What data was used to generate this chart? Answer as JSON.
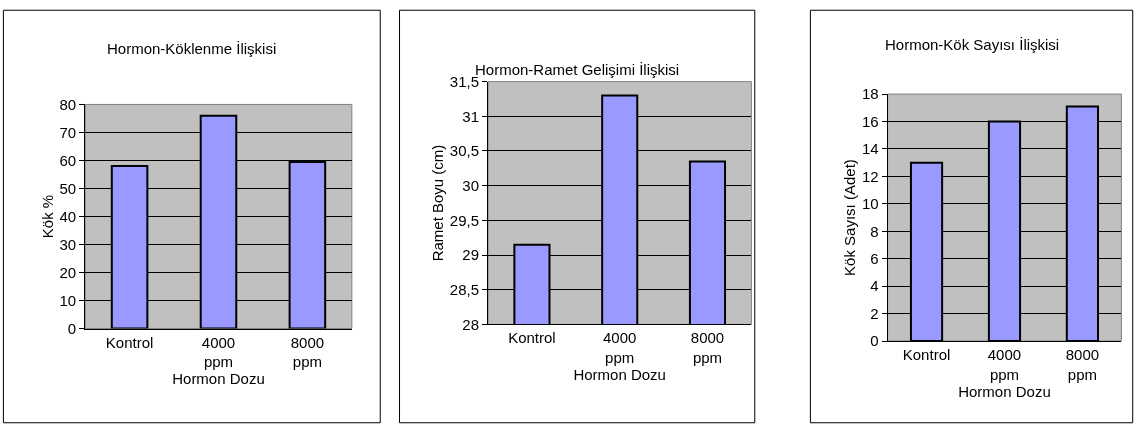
{
  "chart_data": [
    {
      "type": "bar",
      "title": "Hormon-Köklenme İlişkisi",
      "xlabel": "Hormon Dozu",
      "ylabel": "Kök %",
      "categories": [
        "Kontrol",
        "4000 ppm",
        "8000 ppm"
      ],
      "values": [
        58,
        76,
        59.5
      ],
      "color": "#9999ff",
      "ylim": [
        0,
        80
      ],
      "yticks": [
        0,
        10,
        20,
        30,
        40,
        50,
        60,
        70,
        80
      ],
      "grid": "y"
    },
    {
      "type": "bar",
      "title": "Hormon-Ramet Gelişimi İlişkisi",
      "xlabel": "Hormon Dozu",
      "ylabel": "Ramet Boyu (cm)",
      "categories": [
        "Kontrol",
        "4000 ppm",
        "8000 ppm"
      ],
      "values": [
        29.15,
        31.3,
        30.35
      ],
      "color": "#9999ff",
      "ylim": [
        28,
        31.5
      ],
      "yticks": [
        28,
        {
          "value": 28.5,
          "label": "28,5"
        },
        29,
        {
          "value": 29.5,
          "label": "29,5"
        },
        30,
        {
          "value": 30.5,
          "label": "30,5"
        },
        31,
        {
          "value": 31.5,
          "label": "31,5"
        }
      ],
      "grid": "y"
    },
    {
      "type": "bar",
      "title": "Hormon-Kök Sayısı İlişkisi",
      "xlabel": "Hormon Dozu",
      "ylabel": "Kök Sayısı (Adet)",
      "categories": [
        "Kontrol",
        "4000 ppm",
        "8000 ppm"
      ],
      "values": [
        13,
        16,
        17.1
      ],
      "color": "#9999ff",
      "ylim": [
        0,
        18
      ],
      "yticks": [
        0,
        2,
        4,
        6,
        8,
        10,
        12,
        14,
        16,
        18
      ],
      "grid": "y"
    }
  ]
}
